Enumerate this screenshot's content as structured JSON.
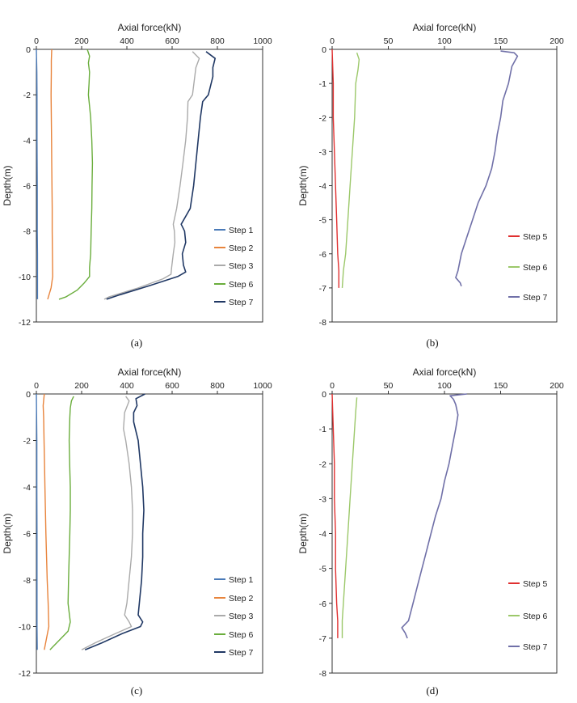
{
  "chart_data": [
    {
      "panel": "(a)",
      "type": "line",
      "xlabel": "Axial force(kN)",
      "ylabel": "Depth(m)",
      "xlim": [
        0,
        1000
      ],
      "ylim": [
        -12,
        0
      ],
      "xticks": [
        0,
        200,
        400,
        600,
        800,
        1000
      ],
      "yticks": [
        0,
        -2,
        -4,
        -6,
        -8,
        -10,
        -12
      ],
      "x_axis_position": "top",
      "grid": false,
      "legend_position": "bottom-right",
      "series": [
        {
          "name": "Step 1",
          "color": "#4a7ab8",
          "points": [
            [
              0,
              0
            ],
            [
              2,
              -1
            ],
            [
              3,
              -2
            ],
            [
              3,
              -4
            ],
            [
              4,
              -6
            ],
            [
              4,
              -8
            ],
            [
              5,
              -9
            ],
            [
              5,
              -10
            ],
            [
              5,
              -10.5
            ],
            [
              5,
              -11
            ]
          ]
        },
        {
          "name": "Step 2",
          "color": "#e8843c",
          "points": [
            [
              68,
              0
            ],
            [
              66,
              -0.5
            ],
            [
              66,
              -1
            ],
            [
              65,
              -2
            ],
            [
              66,
              -3
            ],
            [
              67,
              -4
            ],
            [
              68,
              -5
            ],
            [
              69,
              -6
            ],
            [
              70,
              -7
            ],
            [
              70,
              -8
            ],
            [
              71,
              -9
            ],
            [
              72,
              -10
            ],
            [
              65,
              -10.5
            ],
            [
              50,
              -11
            ]
          ]
        },
        {
          "name": "Step 3",
          "color": "#aaaaaa",
          "points": [
            [
              690,
              -0.1
            ],
            [
              720,
              -0.4
            ],
            [
              705,
              -0.8
            ],
            [
              700,
              -1.2
            ],
            [
              695,
              -1.6
            ],
            [
              690,
              -2
            ],
            [
              670,
              -2.3
            ],
            [
              668,
              -3
            ],
            [
              660,
              -4
            ],
            [
              648,
              -5
            ],
            [
              635,
              -6
            ],
            [
              620,
              -7
            ],
            [
              605,
              -7.7
            ],
            [
              610,
              -8
            ],
            [
              612,
              -8.5
            ],
            [
              605,
              -9
            ],
            [
              598,
              -9.6
            ],
            [
              595,
              -9.9
            ],
            [
              560,
              -10.1
            ],
            [
              450,
              -10.5
            ],
            [
              320,
              -10.9
            ],
            [
              300,
              -11
            ]
          ]
        },
        {
          "name": "Step 6",
          "color": "#6aad3c",
          "points": [
            [
              225,
              0
            ],
            [
              235,
              -0.3
            ],
            [
              230,
              -0.6
            ],
            [
              235,
              -1
            ],
            [
              233,
              -1.5
            ],
            [
              230,
              -2
            ],
            [
              235,
              -2.5
            ],
            [
              240,
              -3
            ],
            [
              245,
              -4
            ],
            [
              248,
              -5
            ],
            [
              246,
              -6
            ],
            [
              245,
              -7
            ],
            [
              242,
              -8
            ],
            [
              240,
              -9
            ],
            [
              235,
              -9.6
            ],
            [
              235,
              -10
            ],
            [
              210,
              -10.3
            ],
            [
              180,
              -10.6
            ],
            [
              130,
              -10.9
            ],
            [
              100,
              -11
            ]
          ]
        },
        {
          "name": "Step 7",
          "color": "#203864",
          "points": [
            [
              750,
              -0.1
            ],
            [
              790,
              -0.4
            ],
            [
              780,
              -0.8
            ],
            [
              780,
              -1.2
            ],
            [
              770,
              -1.6
            ],
            [
              760,
              -2
            ],
            [
              735,
              -2.3
            ],
            [
              725,
              -3
            ],
            [
              715,
              -4
            ],
            [
              705,
              -5
            ],
            [
              695,
              -6
            ],
            [
              680,
              -7
            ],
            [
              640,
              -7.7
            ],
            [
              655,
              -8
            ],
            [
              660,
              -8.5
            ],
            [
              645,
              -9
            ],
            [
              650,
              -9.5
            ],
            [
              660,
              -9.8
            ],
            [
              625,
              -10
            ],
            [
              500,
              -10.4
            ],
            [
              370,
              -10.8
            ],
            [
              310,
              -11
            ]
          ]
        }
      ]
    },
    {
      "panel": "(b)",
      "type": "line",
      "xlabel": "Axial force(kN)",
      "ylabel": "Depth(m)",
      "xlim": [
        0,
        200
      ],
      "ylim": [
        -8,
        0
      ],
      "xticks": [
        0,
        50,
        100,
        150,
        200
      ],
      "yticks": [
        0,
        -1,
        -2,
        -3,
        -4,
        -5,
        -6,
        -7,
        -8
      ],
      "x_axis_position": "top",
      "grid": false,
      "legend_position": "bottom-right",
      "series": [
        {
          "name": "Step 5",
          "color": "#e03030",
          "points": [
            [
              0,
              0
            ],
            [
              1,
              -1
            ],
            [
              1,
              -2
            ],
            [
              2,
              -3
            ],
            [
              3,
              -4
            ],
            [
              4,
              -5
            ],
            [
              5,
              -6
            ],
            [
              6,
              -6.5
            ],
            [
              6,
              -7
            ]
          ]
        },
        {
          "name": "Step 6",
          "color": "#9cc86a",
          "points": [
            [
              22,
              -0.1
            ],
            [
              24,
              -0.3
            ],
            [
              23,
              -0.6
            ],
            [
              21,
              -1
            ],
            [
              20,
              -2
            ],
            [
              18,
              -3
            ],
            [
              16,
              -4
            ],
            [
              14,
              -5
            ],
            [
              12,
              -6
            ],
            [
              10,
              -6.5
            ],
            [
              9,
              -7
            ]
          ]
        },
        {
          "name": "Step 7",
          "color": "#7070a8",
          "points": [
            [
              150,
              -0.05
            ],
            [
              162,
              -0.1
            ],
            [
              165,
              -0.2
            ],
            [
              160,
              -0.5
            ],
            [
              157,
              -1
            ],
            [
              152,
              -1.5
            ],
            [
              150,
              -2
            ],
            [
              147,
              -2.5
            ],
            [
              145,
              -3
            ],
            [
              142,
              -3.5
            ],
            [
              137,
              -4
            ],
            [
              130,
              -4.5
            ],
            [
              125,
              -5
            ],
            [
              120,
              -5.5
            ],
            [
              115,
              -6
            ],
            [
              112,
              -6.5
            ],
            [
              110,
              -6.7
            ],
            [
              114,
              -6.85
            ],
            [
              115,
              -6.95
            ]
          ]
        }
      ]
    },
    {
      "panel": "(c)",
      "type": "line",
      "xlabel": "Axial force(kN)",
      "ylabel": "Depth(m)",
      "xlim": [
        0,
        1000
      ],
      "ylim": [
        -12,
        0
      ],
      "xticks": [
        0,
        200,
        400,
        600,
        800,
        1000
      ],
      "yticks": [
        0,
        -2,
        -4,
        -6,
        -8,
        -10,
        -12
      ],
      "x_axis_position": "top",
      "grid": false,
      "legend_position": "bottom-right",
      "series": [
        {
          "name": "Step 1",
          "color": "#4a7ab8",
          "points": [
            [
              0,
              0
            ],
            [
              1,
              -1
            ],
            [
              2,
              -2
            ],
            [
              2,
              -4
            ],
            [
              3,
              -6
            ],
            [
              3,
              -8
            ],
            [
              3,
              -10
            ],
            [
              4,
              -11
            ]
          ]
        },
        {
          "name": "Step 2",
          "color": "#e8843c",
          "points": [
            [
              35,
              0
            ],
            [
              30,
              -0.5
            ],
            [
              32,
              -1
            ],
            [
              34,
              -2
            ],
            [
              36,
              -3
            ],
            [
              38,
              -4
            ],
            [
              40,
              -5
            ],
            [
              42,
              -6
            ],
            [
              45,
              -7
            ],
            [
              48,
              -8
            ],
            [
              52,
              -9
            ],
            [
              55,
              -10
            ],
            [
              45,
              -10.5
            ],
            [
              35,
              -11
            ]
          ]
        },
        {
          "name": "Step 3",
          "color": "#aaaaaa",
          "points": [
            [
              395,
              -0.1
            ],
            [
              410,
              -0.3
            ],
            [
              390,
              -0.8
            ],
            [
              385,
              -1.5
            ],
            [
              395,
              -2
            ],
            [
              410,
              -3
            ],
            [
              420,
              -4
            ],
            [
              425,
              -5
            ],
            [
              425,
              -6
            ],
            [
              420,
              -7
            ],
            [
              410,
              -8
            ],
            [
              400,
              -9
            ],
            [
              390,
              -9.5
            ],
            [
              410,
              -9.8
            ],
            [
              420,
              -10
            ],
            [
              350,
              -10.3
            ],
            [
              260,
              -10.7
            ],
            [
              200,
              -11
            ]
          ]
        },
        {
          "name": "Step 6",
          "color": "#6aad3c",
          "points": [
            [
              165,
              -0.1
            ],
            [
              155,
              -0.3
            ],
            [
              150,
              -0.6
            ],
            [
              148,
              -1
            ],
            [
              145,
              -2
            ],
            [
              147,
              -3
            ],
            [
              150,
              -4
            ],
            [
              150,
              -5
            ],
            [
              148,
              -6
            ],
            [
              145,
              -7
            ],
            [
              142,
              -8
            ],
            [
              140,
              -9
            ],
            [
              150,
              -9.8
            ],
            [
              140,
              -10.2
            ],
            [
              100,
              -10.6
            ],
            [
              60,
              -11
            ]
          ]
        },
        {
          "name": "Step 7",
          "color": "#203864",
          "points": [
            [
              480,
              0
            ],
            [
              440,
              -0.2
            ],
            [
              445,
              -0.5
            ],
            [
              430,
              -0.8
            ],
            [
              430,
              -1.2
            ],
            [
              440,
              -1.6
            ],
            [
              450,
              -2
            ],
            [
              460,
              -3
            ],
            [
              470,
              -4
            ],
            [
              475,
              -5
            ],
            [
              470,
              -6
            ],
            [
              470,
              -7
            ],
            [
              465,
              -8
            ],
            [
              455,
              -9
            ],
            [
              450,
              -9.5
            ],
            [
              470,
              -9.8
            ],
            [
              460,
              -10
            ],
            [
              380,
              -10.3
            ],
            [
              290,
              -10.7
            ],
            [
              215,
              -11
            ]
          ]
        }
      ]
    },
    {
      "panel": "(d)",
      "type": "line",
      "xlabel": "Axial force(kN)",
      "ylabel": "Depth(m)",
      "xlim": [
        0,
        200
      ],
      "ylim": [
        -8,
        0
      ],
      "xticks": [
        0,
        50,
        100,
        150,
        200
      ],
      "yticks": [
        0,
        -1,
        -2,
        -3,
        -4,
        -5,
        -6,
        -7,
        -8
      ],
      "x_axis_position": "top",
      "grid": false,
      "legend_position": "bottom-right",
      "series": [
        {
          "name": "Step 5",
          "color": "#e03030",
          "points": [
            [
              0,
              0
            ],
            [
              1,
              -1
            ],
            [
              2,
              -2
            ],
            [
              2,
              -3
            ],
            [
              3,
              -4
            ],
            [
              3,
              -5
            ],
            [
              4,
              -6
            ],
            [
              5,
              -6.5
            ],
            [
              5,
              -7
            ]
          ]
        },
        {
          "name": "Step 6",
          "color": "#9cc86a",
          "points": [
            [
              22,
              -0.1
            ],
            [
              21,
              -0.5
            ],
            [
              20,
              -1
            ],
            [
              18,
              -2
            ],
            [
              16,
              -3
            ],
            [
              14,
              -4
            ],
            [
              12,
              -5
            ],
            [
              10,
              -6
            ],
            [
              9,
              -6.5
            ],
            [
              9,
              -7
            ]
          ]
        },
        {
          "name": "Step 7",
          "color": "#7070a8",
          "points": [
            [
              120,
              0
            ],
            [
              105,
              -0.05
            ],
            [
              108,
              -0.15
            ],
            [
              110,
              -0.3
            ],
            [
              112,
              -0.6
            ],
            [
              110,
              -1
            ],
            [
              107,
              -1.5
            ],
            [
              104,
              -2
            ],
            [
              100,
              -2.5
            ],
            [
              97,
              -3
            ],
            [
              92,
              -3.5
            ],
            [
              88,
              -4
            ],
            [
              84,
              -4.5
            ],
            [
              80,
              -5
            ],
            [
              76,
              -5.5
            ],
            [
              72,
              -6
            ],
            [
              68,
              -6.5
            ],
            [
              62,
              -6.7
            ],
            [
              65,
              -6.85
            ],
            [
              67,
              -7
            ]
          ]
        }
      ]
    }
  ]
}
